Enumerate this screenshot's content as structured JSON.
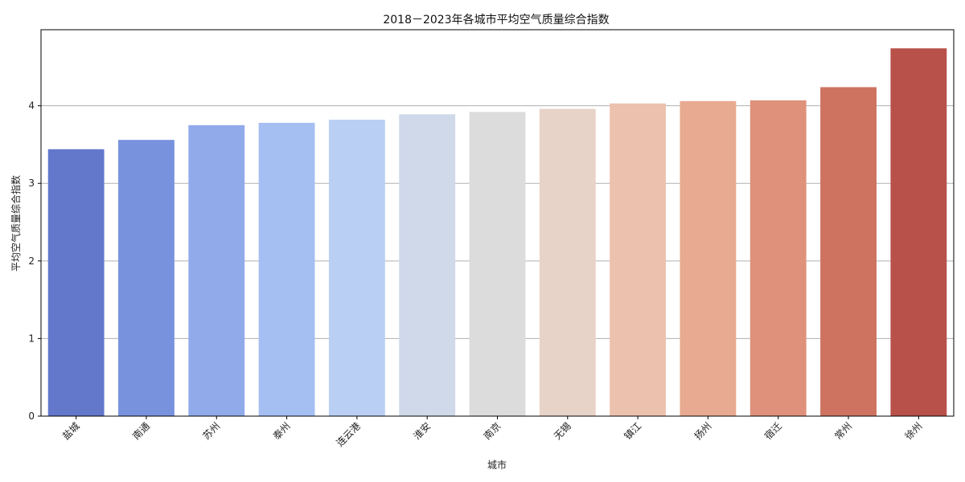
{
  "chart_data": {
    "type": "bar",
    "title": "2018－2023年各城市平均空气质量综合指数",
    "xlabel": "城市",
    "ylabel": "平均空气质量综合指数",
    "categories": [
      "盐城",
      "南通",
      "苏州",
      "泰州",
      "连云港",
      "淮安",
      "南京",
      "无锡",
      "镇江",
      "扬州",
      "宿迁",
      "常州",
      "徐州"
    ],
    "values": [
      3.44,
      3.56,
      3.75,
      3.78,
      3.82,
      3.89,
      3.92,
      3.96,
      4.03,
      4.06,
      4.07,
      4.24,
      4.74
    ],
    "colors": [
      "#6378cb",
      "#7892de",
      "#90aaea",
      "#a5bff3",
      "#b9cff3",
      "#cfd9ea",
      "#dcdcdc",
      "#e7d3c8",
      "#ecc2ae",
      "#e8aa90",
      "#df917b",
      "#cd735f",
      "#b8514a"
    ],
    "ylim": [
      0,
      4.98
    ],
    "yticks": [
      0,
      1,
      2,
      3,
      4
    ],
    "grid": "y"
  }
}
